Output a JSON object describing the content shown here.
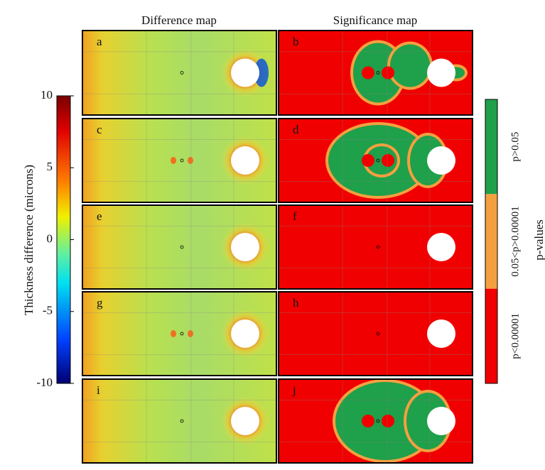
{
  "figure": {
    "column_titles": [
      "Difference map",
      "Significance map"
    ],
    "panel_letters": [
      [
        "a",
        "b"
      ],
      [
        "c",
        "d"
      ],
      [
        "e",
        "f"
      ],
      [
        "g",
        "h"
      ],
      [
        "i",
        "j"
      ]
    ],
    "colorbar": {
      "label": "Thickness difference (microns)",
      "ticks": [
        10,
        5,
        0,
        -5,
        -10
      ],
      "lim": [
        -10,
        10
      ]
    },
    "legend": {
      "title": "p-values",
      "entries": [
        {
          "label": "p>0.05",
          "color": "#1fa04a"
        },
        {
          "label": "0.05<p>0.00001",
          "color": "#f5a040"
        },
        {
          "label": "p<0.00001",
          "color": "#f00000"
        }
      ]
    }
  }
}
